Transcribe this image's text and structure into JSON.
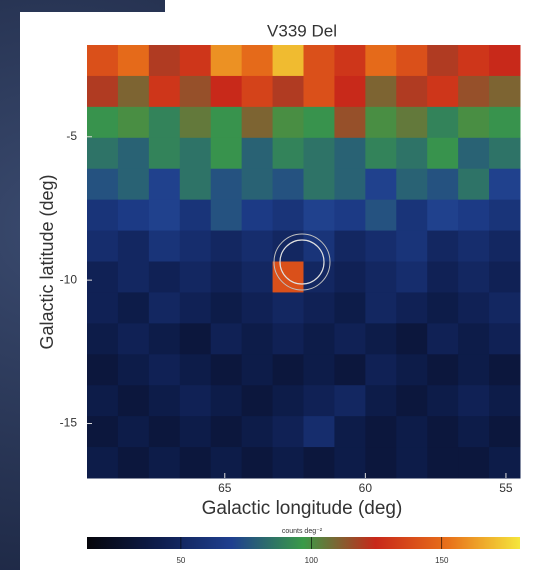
{
  "chart_data": {
    "type": "heatmap",
    "title": "V339 Del",
    "xlabel": "Galactic longitude (deg)",
    "ylabel": "Galactic latitude (deg)",
    "xlim": [
      69.9,
      54.5
    ],
    "xticks": [
      65,
      60,
      55
    ],
    "ylim": [
      -16.9,
      -1.8
    ],
    "yticks": [
      -5,
      -10,
      -15
    ],
    "z": [
      [
        140,
        150,
        120,
        130,
        160,
        150,
        170,
        140,
        130,
        150,
        140,
        120,
        130,
        125
      ],
      [
        120,
        110,
        130,
        115,
        125,
        135,
        120,
        140,
        125,
        110,
        120,
        130,
        115,
        110
      ],
      [
        95,
        100,
        90,
        105,
        95,
        110,
        100,
        95,
        115,
        100,
        105,
        90,
        100,
        95
      ],
      [
        85,
        80,
        90,
        85,
        95,
        80,
        90,
        85,
        80,
        90,
        85,
        95,
        80,
        85
      ],
      [
        75,
        80,
        70,
        85,
        75,
        80,
        75,
        85,
        80,
        70,
        80,
        75,
        85,
        70
      ],
      [
        60,
        65,
        70,
        60,
        75,
        65,
        60,
        70,
        65,
        75,
        60,
        70,
        65,
        60
      ],
      [
        55,
        50,
        60,
        55,
        50,
        55,
        50,
        60,
        50,
        55,
        60,
        50,
        55,
        50
      ],
      [
        45,
        50,
        45,
        50,
        45,
        50,
        140,
        50,
        45,
        50,
        55,
        45,
        50,
        45
      ],
      [
        45,
        40,
        50,
        45,
        40,
        45,
        50,
        45,
        40,
        50,
        45,
        40,
        45,
        50
      ],
      [
        40,
        45,
        40,
        35,
        45,
        40,
        45,
        40,
        45,
        40,
        35,
        45,
        40,
        45
      ],
      [
        35,
        40,
        45,
        40,
        35,
        40,
        35,
        40,
        35,
        45,
        40,
        35,
        40,
        35
      ],
      [
        40,
        35,
        40,
        45,
        40,
        35,
        40,
        45,
        50,
        40,
        35,
        40,
        45,
        40
      ],
      [
        35,
        40,
        35,
        40,
        35,
        40,
        45,
        55,
        40,
        35,
        40,
        35,
        40,
        35
      ],
      [
        40,
        35,
        40,
        35,
        40,
        35,
        40,
        35,
        40,
        35,
        40,
        35,
        35,
        40
      ]
    ],
    "zlim": [
      14,
      180
    ],
    "zticks": [
      50,
      100,
      150
    ],
    "colorbar_label": "counts deg⁻²",
    "colormap": [
      "#05050a",
      "#0e1d4d",
      "#1f3f8f",
      "#3a9a48",
      "#c8281a",
      "#e8701a",
      "#f5e63c"
    ]
  }
}
